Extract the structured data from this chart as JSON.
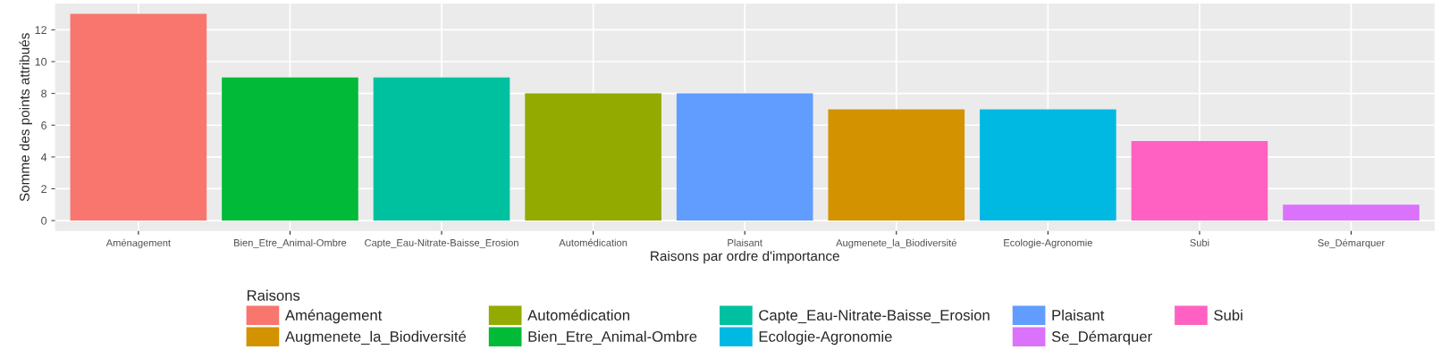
{
  "chart_data": {
    "type": "bar",
    "xlabel": "Raisons par ordre d'importance",
    "ylabel": "Somme des points attribués",
    "legend_title": "Raisons",
    "categories": [
      "Aménagement",
      "Bien_Etre_Animal-Ombre",
      "Capte_Eau-Nitrate-Baisse_Erosion",
      "Automédication",
      "Plaisant",
      "Augmenete_la_Biodiversité",
      "Ecologie-Agronomie",
      "Subi",
      "Se_Démarquer"
    ],
    "series": [
      {
        "name": "Aménagement",
        "color": "#f8766d",
        "values": [
          13,
          null,
          null,
          null,
          null,
          null,
          null,
          null,
          null
        ]
      },
      {
        "name": "Augmenete_la_Biodiversité",
        "color": "#d39200",
        "values": [
          null,
          null,
          null,
          null,
          null,
          7,
          null,
          null,
          null
        ]
      },
      {
        "name": "Automédication",
        "color": "#93aa00",
        "values": [
          null,
          null,
          null,
          8,
          null,
          null,
          null,
          null,
          null
        ]
      },
      {
        "name": "Bien_Etre_Animal-Ombre",
        "color": "#00ba38",
        "values": [
          null,
          9,
          null,
          null,
          null,
          null,
          null,
          null,
          null
        ]
      },
      {
        "name": "Capte_Eau-Nitrate-Baisse_Erosion",
        "color": "#00c19f",
        "values": [
          null,
          null,
          9,
          null,
          null,
          null,
          null,
          null,
          null
        ]
      },
      {
        "name": "Ecologie-Agronomie",
        "color": "#00b9e3",
        "values": [
          null,
          null,
          null,
          null,
          null,
          null,
          7,
          null,
          null
        ]
      },
      {
        "name": "Plaisant",
        "color": "#619cff",
        "values": [
          null,
          null,
          null,
          null,
          8,
          null,
          null,
          null,
          null
        ]
      },
      {
        "name": "Se_Démarquer",
        "color": "#db72fb",
        "values": [
          null,
          null,
          null,
          null,
          null,
          null,
          null,
          null,
          1
        ]
      },
      {
        "name": "Subi",
        "color": "#ff61c3",
        "values": [
          null,
          null,
          null,
          null,
          null,
          null,
          null,
          5,
          null
        ]
      }
    ],
    "ylim": [
      -0.65,
      13.65
    ],
    "yticks": [
      0,
      2,
      4,
      6,
      8,
      10,
      12
    ],
    "grid": true,
    "legend": "bottom"
  }
}
